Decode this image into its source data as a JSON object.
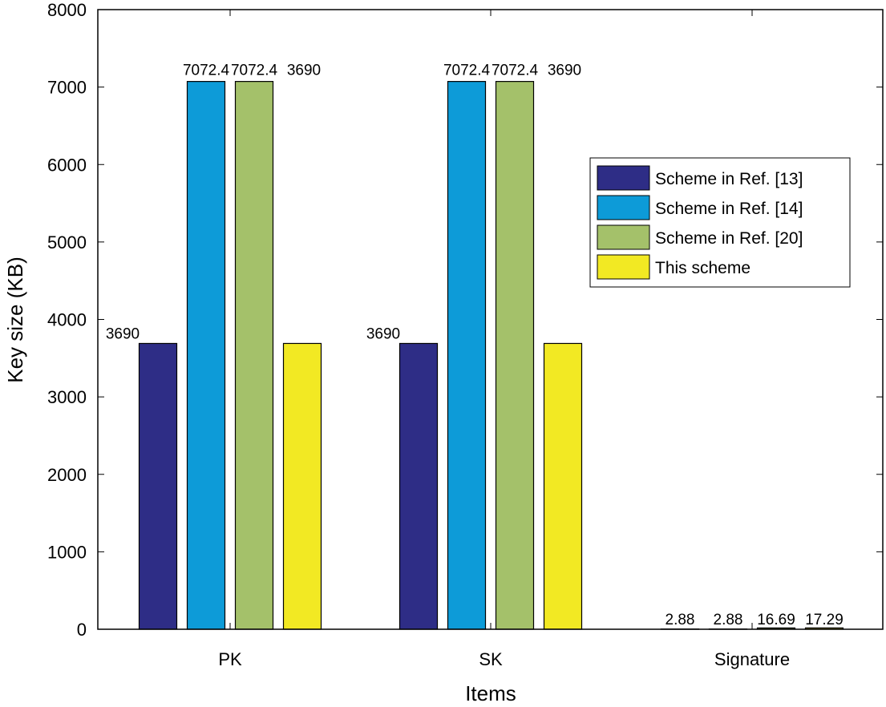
{
  "chart_data": {
    "type": "bar",
    "title": "",
    "xlabel": "Items",
    "ylabel": "Key size (KB)",
    "categories": [
      "PK",
      "SK",
      "Signature"
    ],
    "ylim": [
      0,
      8000
    ],
    "yticks": [
      0,
      1000,
      2000,
      3000,
      4000,
      5000,
      6000,
      7000,
      8000
    ],
    "grid": false,
    "legend_position": "right",
    "series": [
      {
        "name": "Scheme in Ref. [13]",
        "color": "#2e2d86",
        "values": [
          3690,
          3690,
          2.88
        ],
        "labels": [
          "3690",
          "3690",
          "2.88"
        ]
      },
      {
        "name": "Scheme in Ref. [14]",
        "color": "#0d9bd8",
        "values": [
          7072.4,
          7072.4,
          2.88
        ],
        "labels": [
          "7072.4",
          "7072.4",
          "2.88"
        ]
      },
      {
        "name": "Scheme in Ref. [20]",
        "color": "#a4c16a",
        "values": [
          7072.4,
          7072.4,
          16.69
        ],
        "labels": [
          "7072.4",
          "7072.4",
          "16.69"
        ]
      },
      {
        "name": "This scheme",
        "color": "#f2e923",
        "values": [
          3690,
          3690,
          17.29
        ],
        "labels": [
          "3690",
          "3690",
          "17.29"
        ]
      }
    ]
  }
}
